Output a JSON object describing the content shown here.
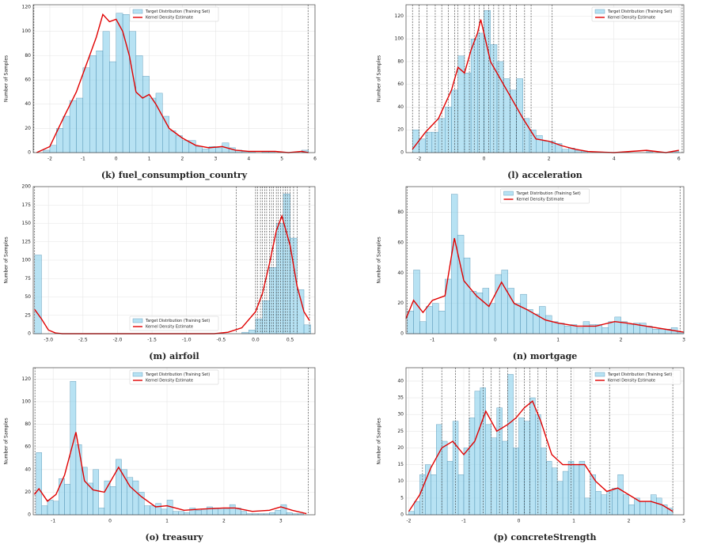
{
  "chart_data": [
    {
      "type": "histogram",
      "caption": "(k) fuel_consumption_country",
      "ylabel": "Number of Samples",
      "legend": "upper center",
      "grid": true,
      "xlim": [
        -2.5,
        6.0
      ],
      "ylim": [
        0,
        122
      ],
      "xticks": [
        -2,
        -1,
        0,
        1,
        2,
        3,
        4,
        5,
        6
      ],
      "yticks": [
        0,
        20,
        40,
        60,
        80,
        100,
        120
      ],
      "vlines": [
        -2.48,
        5.79
      ],
      "vline_color": "#333333",
      "series": [
        {
          "name": "Target Distribution (Training Set)",
          "color": "#87ceeb",
          "bins": [
            -2.4,
            -2.2,
            -2.0,
            -1.8,
            -1.6,
            -1.4,
            -1.2,
            -1.0,
            -0.8,
            -0.6,
            -0.4,
            -0.2,
            0.0,
            0.2,
            0.4,
            0.6,
            0.8,
            1.0,
            1.2,
            1.4,
            1.6,
            1.8,
            2.0,
            2.2,
            2.4,
            2.6,
            2.8,
            3.0,
            3.2,
            3.4,
            3.6,
            3.8,
            4.0,
            4.2,
            4.4,
            4.6,
            4.8,
            5.0,
            5.2,
            5.4,
            5.6,
            5.8
          ],
          "values": [
            0,
            2,
            6,
            20,
            30,
            43,
            45,
            70,
            80,
            84,
            100,
            75,
            115,
            114,
            100,
            80,
            63,
            45,
            49,
            30,
            18,
            14,
            10,
            10,
            5,
            3,
            5,
            4,
            8,
            4,
            2,
            1,
            1,
            0,
            1,
            1,
            0,
            0,
            0,
            0,
            2
          ]
        },
        {
          "name": "Kernel Density Estimate",
          "color": "#e00000",
          "x": [
            -2.4,
            -2.0,
            -1.6,
            -1.2,
            -0.8,
            -0.6,
            -0.4,
            -0.2,
            0,
            0.2,
            0.4,
            0.6,
            0.8,
            1.0,
            1.2,
            1.6,
            2.0,
            2.4,
            2.8,
            3.2,
            3.6,
            4.0,
            4.4,
            4.8,
            5.2,
            5.6,
            5.8
          ],
          "values": [
            0,
            5,
            28,
            50,
            80,
            95,
            114,
            108,
            110,
            100,
            80,
            50,
            45,
            48,
            40,
            20,
            12,
            6,
            4,
            5,
            2,
            1,
            1,
            1,
            0,
            1,
            0
          ]
        }
      ]
    },
    {
      "type": "histogram",
      "caption": "(l) acceleration",
      "ylabel": "Number of Samples",
      "legend": "upper right",
      "grid": true,
      "xlim": [
        -2.4,
        6.15
      ],
      "ylim": [
        0,
        130
      ],
      "xticks": [
        -2,
        0,
        2,
        4,
        6
      ],
      "yticks": [
        0,
        20,
        40,
        60,
        80,
        100,
        120
      ],
      "vlines": [
        -2.2,
        -2.0,
        -1.75,
        -1.5,
        -1.3,
        -1.1,
        -0.9,
        -0.8,
        -0.6,
        -0.45,
        -0.3,
        -0.15,
        0,
        0.15,
        0.3,
        0.45,
        0.6,
        0.8,
        1.0,
        1.25,
        1.45,
        2.1,
        6.1
      ],
      "vline_color": "#333333",
      "series": [
        {
          "name": "Target Distribution (Training Set)",
          "color": "#87ceeb",
          "bins": [
            -2.2,
            -2.0,
            -1.8,
            -1.6,
            -1.4,
            -1.2,
            -1.0,
            -0.8,
            -0.6,
            -0.4,
            -0.2,
            0.0,
            0.2,
            0.4,
            0.6,
            0.8,
            1.0,
            1.2,
            1.4,
            1.6,
            1.8,
            2.0,
            2.2,
            2.4,
            2.6,
            2.8,
            3.0,
            3.2,
            3.4,
            3.6,
            3.8,
            4.0,
            4.2,
            4.4,
            4.6,
            4.8,
            5.0,
            5.2,
            5.4,
            5.6,
            5.8,
            6.0
          ],
          "values": [
            20,
            12,
            18,
            18,
            30,
            40,
            55,
            85,
            70,
            100,
            105,
            125,
            95,
            80,
            65,
            55,
            65,
            30,
            20,
            15,
            10,
            10,
            8,
            3,
            4,
            2,
            1,
            0,
            0,
            0,
            0,
            0,
            0,
            0,
            0,
            0,
            1,
            0,
            0,
            0,
            1
          ]
        },
        {
          "name": "Kernel Density Estimate",
          "color": "#e00000",
          "x": [
            -2.2,
            -1.8,
            -1.4,
            -1.0,
            -0.8,
            -0.6,
            -0.4,
            -0.2,
            -0.1,
            0,
            0.2,
            0.4,
            0.6,
            0.8,
            1.0,
            1.2,
            1.6,
            2.0,
            2.4,
            2.8,
            3.2,
            4.0,
            5.0,
            5.6,
            6.0
          ],
          "values": [
            3,
            18,
            30,
            55,
            75,
            70,
            90,
            105,
            117,
            105,
            80,
            70,
            60,
            50,
            40,
            30,
            12,
            10,
            6,
            3,
            1,
            0,
            2,
            0,
            2
          ]
        }
      ]
    },
    {
      "type": "histogram",
      "caption": "(m) airfoil",
      "ylabel": "Number of Samples",
      "legend": "lower center",
      "grid": true,
      "xlim": [
        -3.22,
        0.86
      ],
      "ylim": [
        0,
        200
      ],
      "xticks": [
        {
          "value": -3,
          "label": "-3.0"
        },
        -2.5,
        {
          "value": -2,
          "label": "-2.0"
        },
        -1.5,
        {
          "value": -1,
          "label": "-1.0"
        },
        -0.5,
        {
          "value": 0,
          "label": "0.0"
        },
        0.5
      ],
      "yticks": [
        0,
        25,
        50,
        75,
        100,
        125,
        150,
        175,
        200
      ],
      "vlines": [
        -3.2,
        -0.28,
        0.0,
        0.03,
        0.07,
        0.1,
        0.13,
        0.16,
        0.2,
        0.23,
        0.26,
        0.3,
        0.33,
        0.36,
        0.4,
        0.43,
        0.46,
        0.5,
        0.55,
        0.6,
        0.78
      ],
      "vline_color": "#333333",
      "series": [
        {
          "name": "Target Distribution (Training Set)",
          "color": "#87ceeb",
          "bins": [
            -3.2,
            -3.1,
            -3.0,
            -2.9,
            -2.8,
            -2.7,
            -2.6,
            -2.5,
            -2.4,
            -2.3,
            -2.2,
            -2.1,
            -2.0,
            -1.9,
            -1.8,
            -1.7,
            -1.6,
            -1.5,
            -1.4,
            -1.3,
            -1.2,
            -1.1,
            -1.0,
            -0.9,
            -0.8,
            -0.7,
            -0.6,
            -0.5,
            -0.4,
            -0.3,
            -0.2,
            -0.1,
            0.0,
            0.1,
            0.2,
            0.3,
            0.4,
            0.5,
            0.6,
            0.7,
            0.8
          ],
          "values": [
            107,
            0,
            0,
            0,
            0,
            0,
            0,
            0,
            0,
            0,
            0,
            0,
            0,
            0,
            0,
            0,
            0,
            0,
            0,
            0,
            0,
            0,
            0,
            0,
            0,
            0,
            0,
            0,
            0,
            0,
            2,
            5,
            20,
            45,
            90,
            150,
            190,
            130,
            60,
            12
          ]
        },
        {
          "name": "Kernel Density Estimate",
          "color": "#e00000",
          "x": [
            -3.2,
            -3.1,
            -3.0,
            -2.9,
            -2.8,
            -2.5,
            -0.6,
            -0.4,
            -0.2,
            0,
            0.1,
            0.2,
            0.3,
            0.38,
            0.5,
            0.6,
            0.7,
            0.78
          ],
          "values": [
            33,
            20,
            5,
            1,
            0,
            0,
            0,
            2,
            8,
            30,
            55,
            95,
            140,
            160,
            120,
            65,
            30,
            18
          ]
        }
      ]
    },
    {
      "type": "histogram",
      "caption": "(n) mortgage",
      "ylabel": "Number of Samples",
      "legend": "upper center",
      "grid": true,
      "xlim": [
        -1.42,
        3.0
      ],
      "ylim": [
        0,
        97
      ],
      "xticks": [
        -1,
        0,
        1,
        2,
        3
      ],
      "yticks": [
        0,
        20,
        40,
        60,
        80
      ],
      "vlines": [
        -1.4,
        2.94
      ],
      "vline_color": "#333333",
      "series": [
        {
          "name": "Target Distribution (Training Set)",
          "color": "#87ceeb",
          "bins": [
            -1.4,
            -1.3,
            -1.2,
            -1.1,
            -1.0,
            -0.9,
            -0.8,
            -0.7,
            -0.6,
            -0.5,
            -0.4,
            -0.3,
            -0.2,
            -0.1,
            0.0,
            0.1,
            0.2,
            0.3,
            0.4,
            0.5,
            0.6,
            0.7,
            0.8,
            0.9,
            1.0,
            1.1,
            1.2,
            1.3,
            1.4,
            1.5,
            1.6,
            1.7,
            1.8,
            1.9,
            2.0,
            2.1,
            2.2,
            2.3,
            2.4,
            2.5,
            2.6,
            2.7,
            2.8,
            2.9,
            3.0
          ],
          "values": [
            15,
            42,
            8,
            18,
            20,
            15,
            36,
            92,
            65,
            50,
            28,
            27,
            30,
            20,
            39,
            42,
            30,
            20,
            26,
            16,
            13,
            18,
            12,
            8,
            7,
            5,
            6,
            4,
            8,
            6,
            6,
            4,
            8,
            11,
            8,
            6,
            7,
            7,
            5,
            3,
            3,
            3,
            4,
            1
          ]
        },
        {
          "name": "Kernel Density Estimate",
          "color": "#e00000",
          "x": [
            -1.42,
            -1.3,
            -1.15,
            -1.0,
            -0.8,
            -0.65,
            -0.5,
            -0.3,
            -0.1,
            0.1,
            0.3,
            0.5,
            0.8,
            1.0,
            1.3,
            1.6,
            1.9,
            2.1,
            2.4,
            2.7,
            3.0
          ],
          "values": [
            10,
            22,
            14,
            22,
            25,
            63,
            35,
            25,
            18,
            34,
            20,
            16,
            9,
            7,
            5,
            5,
            8,
            7,
            5,
            3,
            1
          ]
        }
      ]
    },
    {
      "type": "histogram",
      "caption": "(o) treasury",
      "ylabel": "Number of Samples",
      "legend": "upper center",
      "grid": true,
      "xlim": [
        -1.35,
        3.6
      ],
      "ylim": [
        0,
        130
      ],
      "xticks": [
        -1,
        0,
        1,
        2,
        3
      ],
      "yticks": [
        0,
        20,
        40,
        60,
        80,
        100,
        120
      ],
      "vlines": [
        -1.32,
        3.48
      ],
      "vline_color": "#333333",
      "series": [
        {
          "name": "Target Distribution (Training Set)",
          "color": "#87ceeb",
          "bins": [
            -1.3,
            -1.2,
            -1.1,
            -1.0,
            -0.9,
            -0.8,
            -0.7,
            -0.6,
            -0.5,
            -0.4,
            -0.3,
            -0.2,
            -0.1,
            0.0,
            0.1,
            0.2,
            0.3,
            0.4,
            0.5,
            0.6,
            0.7,
            0.8,
            0.9,
            1.0,
            1.1,
            1.2,
            1.3,
            1.4,
            1.5,
            1.6,
            1.7,
            1.8,
            1.9,
            2.0,
            2.1,
            2.2,
            2.3,
            2.4,
            2.5,
            2.6,
            2.7,
            2.8,
            2.9,
            3.0,
            3.1,
            3.2,
            3.3,
            3.4
          ],
          "values": [
            55,
            8,
            13,
            12,
            32,
            27,
            118,
            62,
            42,
            28,
            40,
            6,
            30,
            25,
            49,
            40,
            33,
            30,
            20,
            8,
            8,
            10,
            5,
            13,
            3,
            3,
            2,
            6,
            4,
            5,
            7,
            6,
            6,
            5,
            9,
            6,
            3,
            1,
            1,
            1,
            1,
            2,
            4,
            9,
            2,
            1,
            1
          ]
        },
        {
          "name": "Kernel Density Estimate",
          "color": "#e00000",
          "x": [
            -1.33,
            -1.25,
            -1.1,
            -0.95,
            -0.8,
            -0.6,
            -0.45,
            -0.3,
            -0.1,
            0.15,
            0.35,
            0.55,
            0.8,
            1.0,
            1.3,
            1.6,
            2.0,
            2.2,
            2.5,
            2.8,
            3.0,
            3.2,
            3.45
          ],
          "values": [
            18,
            23,
            12,
            18,
            35,
            73,
            30,
            22,
            20,
            42,
            25,
            16,
            7,
            8,
            4,
            5,
            6,
            6,
            3,
            4,
            7,
            4,
            1
          ]
        }
      ]
    },
    {
      "type": "histogram",
      "caption": "(p) concreteStrength",
      "ylabel": "Number of Samples",
      "legend": "upper right",
      "grid": true,
      "xlim": [
        -2.05,
        3.0
      ],
      "ylim": [
        0,
        44
      ],
      "xticks": [
        -2,
        -1,
        0,
        1,
        2,
        3
      ],
      "yticks": [
        0,
        5,
        10,
        15,
        20,
        25,
        30,
        35,
        40
      ],
      "vlines": [
        -1.75,
        -1.4,
        -1.15,
        -0.9,
        -0.65,
        -0.5,
        -0.35,
        -0.2,
        -0.05,
        0.1,
        0.2,
        0.35,
        0.5,
        0.7,
        0.95,
        1.3,
        1.65,
        2.8
      ],
      "vline_color": "#333333",
      "series": [
        {
          "name": "Target Distribution (Training Set)",
          "color": "#87ceeb",
          "bins": [
            -2.0,
            -1.9,
            -1.8,
            -1.7,
            -1.6,
            -1.5,
            -1.4,
            -1.3,
            -1.2,
            -1.1,
            -1.0,
            -0.9,
            -0.8,
            -0.7,
            -0.6,
            -0.5,
            -0.4,
            -0.3,
            -0.2,
            -0.1,
            0.0,
            0.1,
            0.2,
            0.3,
            0.4,
            0.5,
            0.6,
            0.7,
            0.8,
            0.9,
            1.0,
            1.1,
            1.2,
            1.3,
            1.4,
            1.5,
            1.6,
            1.7,
            1.8,
            1.9,
            2.0,
            2.1,
            2.2,
            2.3,
            2.4,
            2.5,
            2.6,
            2.7,
            2.8
          ],
          "values": [
            1,
            4,
            12,
            15,
            12,
            27,
            22,
            16,
            28,
            12,
            20,
            29,
            37,
            38,
            27,
            23,
            32,
            22,
            42,
            20,
            29,
            28,
            35,
            30,
            20,
            16,
            14,
            10,
            13,
            16,
            15,
            16,
            5,
            12,
            7,
            6,
            7,
            8,
            12,
            6,
            3,
            5,
            4,
            4,
            6,
            5,
            3,
            2
          ]
        },
        {
          "name": "Kernel Density Estimate",
          "color": "#e00000",
          "x": [
            -2.0,
            -1.8,
            -1.6,
            -1.4,
            -1.2,
            -1.0,
            -0.8,
            -0.6,
            -0.4,
            -0.2,
            -0.05,
            0.1,
            0.25,
            0.4,
            0.6,
            0.8,
            1.0,
            1.2,
            1.4,
            1.6,
            1.8,
            2.0,
            2.2,
            2.4,
            2.6,
            2.8
          ],
          "values": [
            1,
            6,
            14,
            20,
            22,
            18,
            22,
            31,
            25,
            27,
            29,
            32,
            34,
            28,
            18,
            15,
            15,
            15,
            10,
            7,
            8,
            6,
            4,
            4,
            3,
            1
          ]
        }
      ]
    }
  ]
}
